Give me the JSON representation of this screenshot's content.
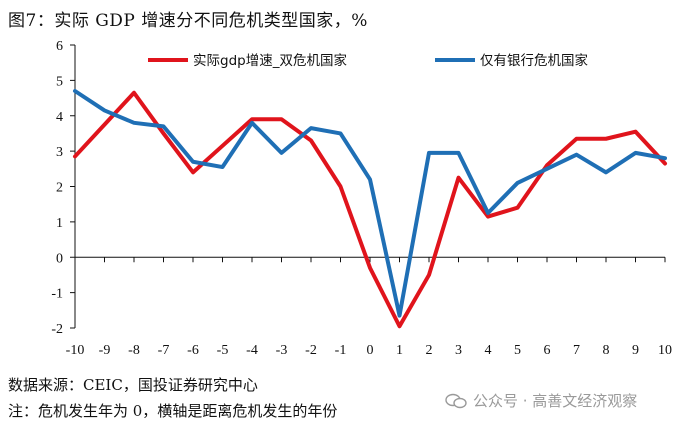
{
  "title": "图7：实际 GDP 增速分不同危机类型国家，%",
  "source": "数据来源：CEIC，国投证券研究中心",
  "note": "注：危机发生年为 0，横轴是距离危机发生的年份",
  "watermark": "公众号 · 高善文经济观察",
  "colors": {
    "series1": "#e0141c",
    "series2": "#1f6fb5",
    "axis": "#111111"
  },
  "chart_data": {
    "type": "line",
    "x": [
      -10,
      -9,
      -8,
      -7,
      -6,
      -5,
      -4,
      -3,
      -2,
      -1,
      0,
      1,
      2,
      3,
      4,
      5,
      6,
      7,
      8,
      9,
      10
    ],
    "xlim": [
      -10,
      10
    ],
    "ylim": [
      -2,
      6
    ],
    "yticks": [
      -2,
      -1,
      0,
      1,
      2,
      3,
      4,
      5,
      6
    ],
    "grid": false,
    "legend": "top",
    "series": [
      {
        "name": "实际gdp增速_双危机国家",
        "color": "#e0141c",
        "values": [
          2.85,
          3.75,
          4.65,
          3.5,
          2.4,
          3.15,
          3.9,
          3.9,
          3.3,
          2.0,
          -0.3,
          -1.95,
          -0.5,
          2.25,
          1.15,
          1.4,
          2.6,
          3.35,
          3.35,
          3.55,
          2.65
        ]
      },
      {
        "name": "仅有银行危机国家",
        "color": "#1f6fb5",
        "values": [
          4.7,
          4.15,
          3.8,
          3.7,
          2.7,
          2.55,
          3.8,
          2.95,
          3.65,
          3.5,
          2.2,
          -1.65,
          2.95,
          2.95,
          1.25,
          2.1,
          2.5,
          2.9,
          2.4,
          2.95,
          2.8
        ]
      }
    ]
  }
}
